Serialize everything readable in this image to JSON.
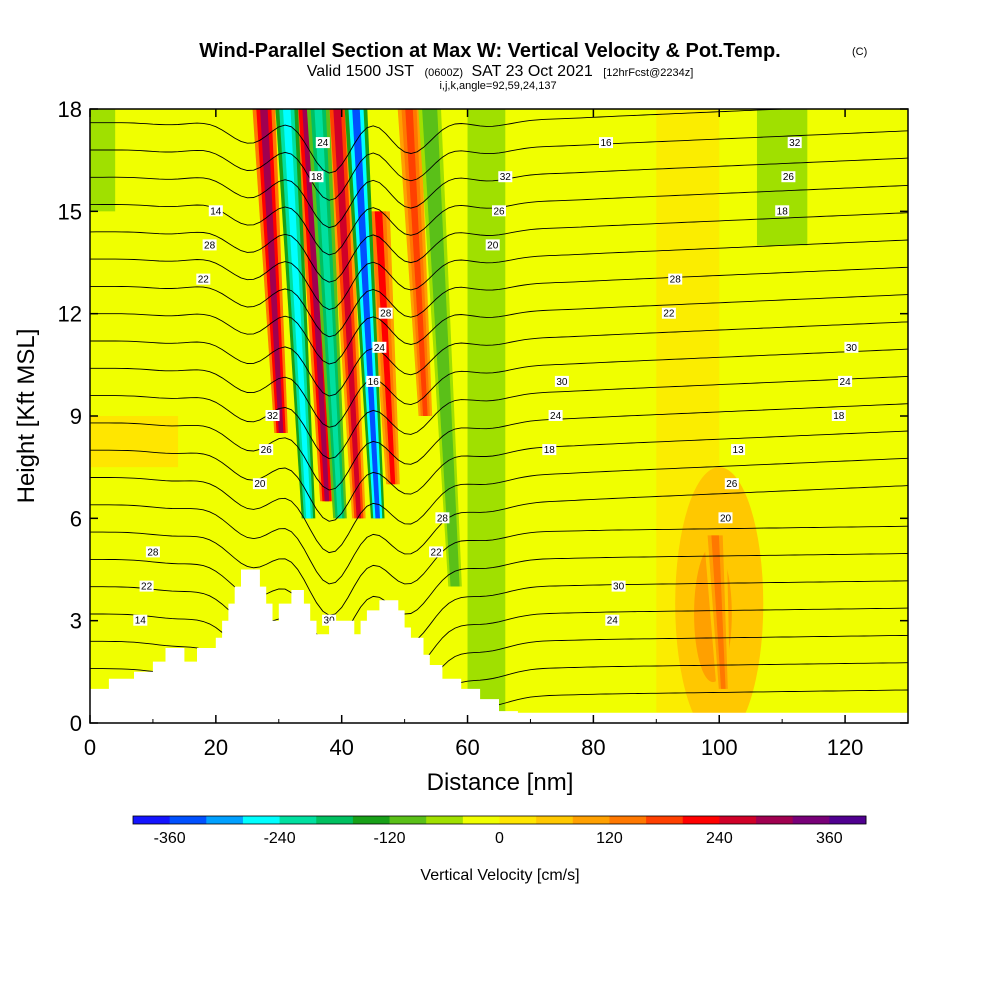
{
  "chart_data": {
    "type": "heatmap",
    "title": "Wind-Parallel Section at Max W: Vertical Velocity & Pot.Temp.",
    "title_mark": "(C)",
    "subtitle_valid": "Valid 1500 JST",
    "subtitle_zulu": "(0600Z)",
    "subtitle_date": "SAT 23 Oct 2021",
    "subtitle_fcst": "[12hrFcst@2234z]",
    "subtitle_params": "i,j,k,angle=92,59,24,137",
    "xlabel": "Distance [nm]",
    "ylabel": "Height [Kft MSL]",
    "xlim": [
      0,
      130
    ],
    "ylim": [
      0,
      18
    ],
    "x_ticks": [
      "0",
      "20",
      "40",
      "60",
      "80",
      "100",
      "120"
    ],
    "y_ticks": [
      "0",
      "3",
      "6",
      "9",
      "12",
      "15",
      "18"
    ],
    "colorbar": {
      "label": "Vertical Velocity [cm/s]",
      "tick_labels": [
        "-360",
        "-240",
        "-120",
        "0",
        "120",
        "240",
        "360"
      ],
      "range": [
        -400,
        400
      ],
      "colors": [
        "#1414ff",
        "#0050ff",
        "#00a0ff",
        "#00ffff",
        "#00e0a0",
        "#00c060",
        "#18a018",
        "#5ac018",
        "#a0e000",
        "#f0ff00",
        "#ffe600",
        "#ffc800",
        "#ffa000",
        "#ff7800",
        "#ff4000",
        "#ff0000",
        "#d00028",
        "#a00050",
        "#780078",
        "#500090"
      ]
    },
    "w_field": {
      "description": "",
      "cells": [
        {
          "x": 29,
          "ytop": 18,
          "ybot": 8.5,
          "w": 300
        },
        {
          "x": 36,
          "ytop": 18,
          "ybot": 6.5,
          "w": 280
        },
        {
          "x": 41,
          "ytop": 18,
          "ybot": 6.0,
          "w": 260
        },
        {
          "x": 47,
          "ytop": 15,
          "ybot": 7.0,
          "w": 200
        },
        {
          "x": 52,
          "ytop": 18,
          "ybot": 9.0,
          "w": 180
        },
        {
          "x": 33,
          "ytop": 18,
          "ybot": 6.0,
          "w": -280
        },
        {
          "x": 38,
          "ytop": 18,
          "ybot": 6.0,
          "w": -240
        },
        {
          "x": 44,
          "ytop": 18,
          "ybot": 6.0,
          "w": -330
        },
        {
          "x": 56,
          "ytop": 18,
          "ybot": 4.0,
          "w": -120
        },
        {
          "x": 100,
          "ytop": 5.5,
          "ybot": 1.0,
          "w": 120
        }
      ]
    },
    "theta_contours": {
      "labels": [
        "14",
        "16",
        "16",
        "18",
        "18",
        "18",
        "18",
        "20",
        "20",
        "20",
        "22",
        "22",
        "22",
        "22",
        "24",
        "24",
        "24",
        "24",
        "24",
        "26",
        "26",
        "26",
        "26",
        "28",
        "28",
        "28",
        "28",
        "28",
        "30",
        "30",
        "30",
        "30",
        "32",
        "32",
        "32",
        "13",
        "14"
      ]
    },
    "terrain": [
      [
        0,
        1.0
      ],
      [
        3,
        1.0
      ],
      [
        3,
        1.3
      ],
      [
        7,
        1.3
      ],
      [
        7,
        1.5
      ],
      [
        10,
        1.5
      ],
      [
        10,
        1.8
      ],
      [
        12,
        1.8
      ],
      [
        12,
        2.2
      ],
      [
        15,
        2.2
      ],
      [
        15,
        1.8
      ],
      [
        17,
        1.8
      ],
      [
        17,
        2.2
      ],
      [
        20,
        2.2
      ],
      [
        20,
        2.5
      ],
      [
        21,
        2.5
      ],
      [
        21,
        3.0
      ],
      [
        22,
        3.0
      ],
      [
        22,
        3.5
      ],
      [
        23,
        3.5
      ],
      [
        23,
        4.0
      ],
      [
        24,
        4.0
      ],
      [
        24,
        4.5
      ],
      [
        27,
        4.5
      ],
      [
        27,
        4.0
      ],
      [
        28,
        4.0
      ],
      [
        28,
        3.5
      ],
      [
        29,
        3.5
      ],
      [
        29,
        3.0
      ],
      [
        30,
        3.0
      ],
      [
        30,
        3.5
      ],
      [
        32,
        3.5
      ],
      [
        32,
        3.9
      ],
      [
        34,
        3.9
      ],
      [
        34,
        3.5
      ],
      [
        35,
        3.5
      ],
      [
        35,
        3.0
      ],
      [
        36,
        3.0
      ],
      [
        36,
        2.6
      ],
      [
        38,
        2.6
      ],
      [
        38,
        3.0
      ],
      [
        42,
        3.0
      ],
      [
        42,
        2.6
      ],
      [
        43,
        2.6
      ],
      [
        43,
        3.0
      ],
      [
        44,
        3.0
      ],
      [
        44,
        3.3
      ],
      [
        46,
        3.3
      ],
      [
        46,
        3.6
      ],
      [
        49,
        3.6
      ],
      [
        49,
        3.3
      ],
      [
        50,
        3.3
      ],
      [
        50,
        2.8
      ],
      [
        51,
        2.8
      ],
      [
        51,
        2.5
      ],
      [
        53,
        2.5
      ],
      [
        53,
        2.0
      ],
      [
        54,
        2.0
      ],
      [
        54,
        1.7
      ],
      [
        56,
        1.7
      ],
      [
        56,
        1.3
      ],
      [
        59,
        1.3
      ],
      [
        59,
        1.0
      ],
      [
        62,
        1.0
      ],
      [
        62,
        0.7
      ],
      [
        65,
        0.7
      ],
      [
        65,
        0.35
      ],
      [
        68,
        0.35
      ],
      [
        68,
        0
      ],
      [
        0,
        0
      ]
    ]
  }
}
